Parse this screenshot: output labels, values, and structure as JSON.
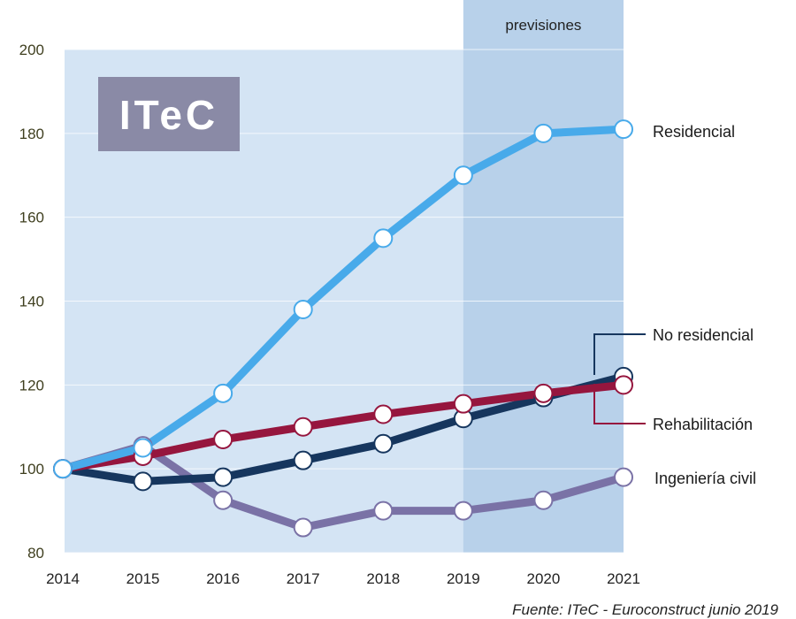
{
  "chart_data": {
    "type": "line",
    "title": "",
    "xlabel": "",
    "ylabel": "",
    "x": [
      2014,
      2015,
      2016,
      2017,
      2018,
      2019,
      2020,
      2021
    ],
    "x_tick_labels": [
      "2014",
      "2015",
      "2016",
      "2017",
      "2018",
      "2019",
      "2020",
      "2021"
    ],
    "ylim": [
      80,
      200
    ],
    "y_ticks": [
      80,
      100,
      120,
      140,
      160,
      180,
      200
    ],
    "y_tick_labels": [
      "80",
      "100",
      "120",
      "140",
      "160",
      "180",
      "200"
    ],
    "grid": true,
    "forecast_region": {
      "label": "previsiones",
      "from": 2019,
      "to": 2021
    },
    "logo": "ITeC",
    "source": "Fuente: ITeC - Euroconstruct junio 2019",
    "colors": {
      "background": "#d4e4f4",
      "forecast_background": "#b8d1ea",
      "logo_box": "#8a8aa6"
    },
    "series": [
      {
        "name": "Residencial",
        "color": "#48aaea",
        "values": [
          100,
          105,
          118,
          138,
          155,
          170,
          180,
          181
        ]
      },
      {
        "name": "No residencial",
        "color": "#16365e",
        "values": [
          100,
          97,
          98,
          102,
          106,
          112,
          117,
          122
        ]
      },
      {
        "name": "Rehabilitación",
        "color": "#96163e",
        "values": [
          100,
          103,
          107,
          110,
          113,
          115.5,
          118,
          120
        ]
      },
      {
        "name": "Ingeniería civil",
        "color": "#7a72a6",
        "values": [
          100,
          105.5,
          92.5,
          86,
          90,
          90,
          92.5,
          98
        ]
      }
    ]
  }
}
